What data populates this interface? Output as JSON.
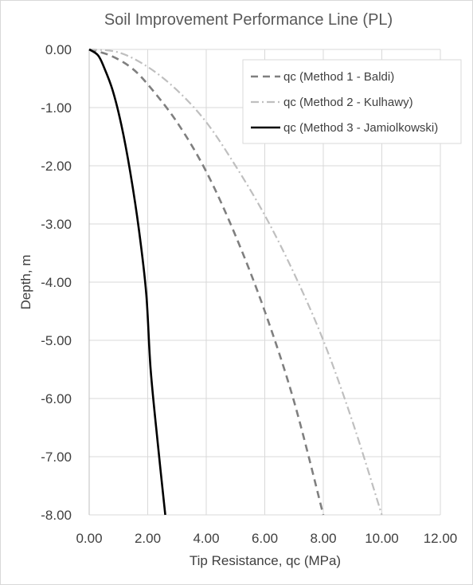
{
  "chart_data": {
    "type": "line",
    "title": "Soil Improvement Performance Line (PL)",
    "xlabel": "Tip Resistance, qc (MPa)",
    "ylabel": "Depth, m",
    "xlim": [
      0,
      12
    ],
    "ylim": [
      -8,
      0
    ],
    "x_ticks": [
      "0.00",
      "2.00",
      "4.00",
      "6.00",
      "8.00",
      "10.00",
      "12.00"
    ],
    "y_ticks": [
      "0.00",
      "-1.00",
      "-2.00",
      "-3.00",
      "-4.00",
      "-5.00",
      "-6.00",
      "-7.00",
      "-8.00"
    ],
    "grid": true,
    "legend_position": "top-right",
    "series": [
      {
        "name": "qc (Method 1 - Baldi)",
        "color": "#7f7f7f",
        "dash": "dashed",
        "points": [
          [
            0,
            0
          ],
          [
            0.7,
            -0.1
          ],
          [
            1.4,
            -0.3
          ],
          [
            2.0,
            -0.6
          ],
          [
            3.0,
            -1.25
          ],
          [
            4.0,
            -2.1
          ],
          [
            5.0,
            -3.2
          ],
          [
            6.0,
            -4.5
          ],
          [
            7.0,
            -6.05
          ],
          [
            8.0,
            -8.0
          ]
        ]
      },
      {
        "name": "qc (Method 2 - Kulhawy)",
        "color": "#bfbfbf",
        "dash": "dashdot",
        "points": [
          [
            0,
            0
          ],
          [
            1.0,
            -0.05
          ],
          [
            2.0,
            -0.3
          ],
          [
            3.0,
            -0.7
          ],
          [
            4.0,
            -1.25
          ],
          [
            5.0,
            -2.0
          ],
          [
            6.0,
            -2.85
          ],
          [
            7.0,
            -3.85
          ],
          [
            8.0,
            -5.0
          ],
          [
            9.0,
            -6.4
          ],
          [
            10.0,
            -8.0
          ]
        ]
      },
      {
        "name": "qc (Method 3 - Jamiolkowski)",
        "color": "#000000",
        "dash": "solid",
        "points": [
          [
            0,
            0
          ],
          [
            0.3,
            -0.1
          ],
          [
            0.5,
            -0.3
          ],
          [
            0.8,
            -0.7
          ],
          [
            1.1,
            -1.3
          ],
          [
            1.4,
            -2.1
          ],
          [
            1.7,
            -3.1
          ],
          [
            1.95,
            -4.2
          ],
          [
            2.1,
            -5.5
          ],
          [
            2.35,
            -6.8
          ],
          [
            2.6,
            -8.0
          ]
        ]
      }
    ]
  }
}
